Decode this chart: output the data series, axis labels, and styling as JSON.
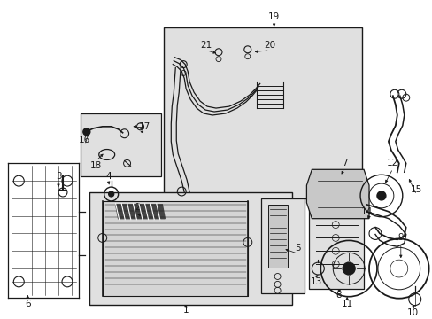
{
  "bg_color": "#ffffff",
  "fig_width": 4.89,
  "fig_height": 3.6,
  "dpi": 100,
  "line_color": "#1a1a1a",
  "shade_color": "#e0e0e0",
  "label_fontsize": 7.5
}
